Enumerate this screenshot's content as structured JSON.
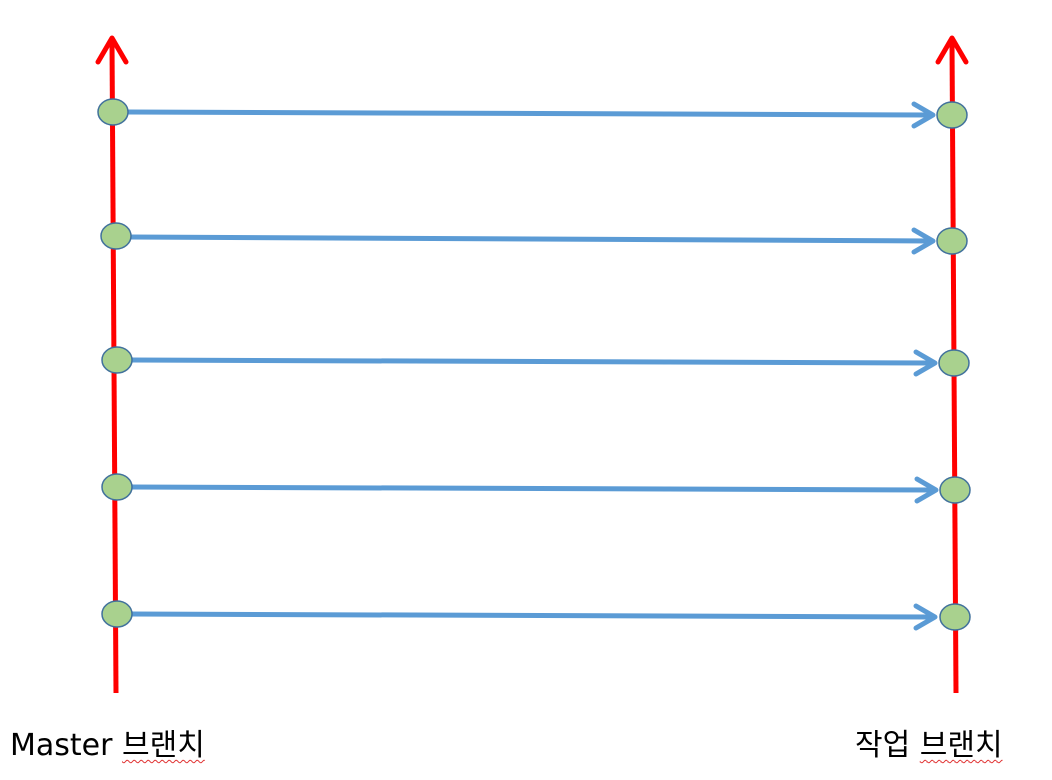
{
  "branches": {
    "left": {
      "label_prefix": "Master",
      "label_korean": "브랜치"
    },
    "right": {
      "label_word1": "작업",
      "label_korean": "브랜치"
    }
  },
  "commit_count": 5,
  "colors": {
    "branch_line": "#ff0000",
    "merge_arrow": "#5b9bd5",
    "commit_fill": "#a9d18e",
    "commit_stroke": "#41719c",
    "spellcheck_underline": "#e03030"
  },
  "icons": {
    "branch_arrowhead": "up-arrow-icon",
    "merge_arrowhead": "right-arrow-icon"
  }
}
